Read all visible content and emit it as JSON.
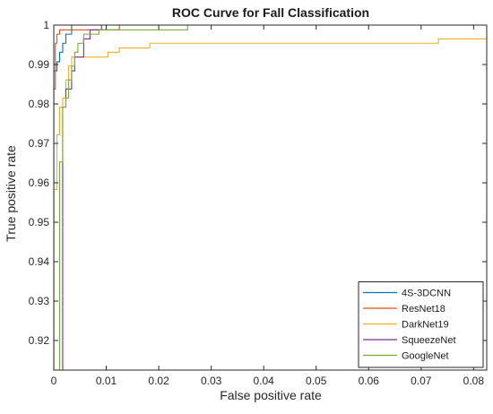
{
  "chart_data": {
    "type": "line",
    "title": "ROC Curve for Fall Classification",
    "xlabel": "False positive rate",
    "ylabel": "True positive rate",
    "xlim": [
      0,
      0.0825
    ],
    "ylim": [
      0.9125,
      1.0
    ],
    "xticks": [
      "0",
      "0.01",
      "0.02",
      "0.03",
      "0.04",
      "0.05",
      "0.06",
      "0.07",
      "0.08"
    ],
    "yticks": [
      "0.92",
      "0.93",
      "0.94",
      "0.95",
      "0.96",
      "0.97",
      "0.98",
      "0.99",
      "1"
    ],
    "grid": false,
    "legend_position": "bottom-right",
    "series": [
      {
        "name": "4S-3DCNN",
        "color": "#0072BD",
        "points": [
          [
            0,
            0.9125
          ],
          [
            0,
            0.9884
          ],
          [
            0.0006,
            0.9884
          ],
          [
            0.0006,
            0.9907
          ],
          [
            0.0011,
            0.9907
          ],
          [
            0.0011,
            0.9931
          ],
          [
            0.0017,
            0.9931
          ],
          [
            0.0017,
            0.9954
          ],
          [
            0.0023,
            0.9954
          ],
          [
            0.0023,
            0.9977
          ],
          [
            0.0034,
            0.9977
          ],
          [
            0.0034,
            1.0
          ],
          [
            0.0825,
            1.0
          ]
        ]
      },
      {
        "name": "ResNet18",
        "color": "#D95319",
        "points": [
          [
            0,
            0.9125
          ],
          [
            0,
            0.9838
          ],
          [
            0.0003,
            0.9838
          ],
          [
            0.0003,
            0.9954
          ],
          [
            0.0006,
            0.9954
          ],
          [
            0.0006,
            0.9977
          ],
          [
            0.0011,
            0.9977
          ],
          [
            0.0011,
            0.9988
          ],
          [
            0.0125,
            0.9988
          ],
          [
            0.0125,
            1.0
          ],
          [
            0.0825,
            1.0
          ]
        ]
      },
      {
        "name": "DarkNet19",
        "color": "#EDB120",
        "points": [
          [
            0,
            0.9125
          ],
          [
            0,
            0.9583
          ],
          [
            0.0006,
            0.9583
          ],
          [
            0.0006,
            0.9722
          ],
          [
            0.0011,
            0.9722
          ],
          [
            0.0011,
            0.9792
          ],
          [
            0.0017,
            0.9792
          ],
          [
            0.0017,
            0.9815
          ],
          [
            0.0023,
            0.9815
          ],
          [
            0.0023,
            0.9861
          ],
          [
            0.0028,
            0.9861
          ],
          [
            0.0028,
            0.9896
          ],
          [
            0.0034,
            0.9896
          ],
          [
            0.0034,
            0.9919
          ],
          [
            0.0103,
            0.9919
          ],
          [
            0.0103,
            0.9931
          ],
          [
            0.0125,
            0.9931
          ],
          [
            0.0125,
            0.9942
          ],
          [
            0.0183,
            0.9942
          ],
          [
            0.0183,
            0.9954
          ],
          [
            0.0733,
            0.9954
          ],
          [
            0.0733,
            0.9965
          ],
          [
            0.0825,
            0.9965
          ]
        ]
      },
      {
        "name": "SqueezeNet",
        "color": "#7E2F8E",
        "points": [
          [
            0,
            0.9125
          ],
          [
            0.0017,
            0.9125
          ],
          [
            0.0017,
            0.9792
          ],
          [
            0.0023,
            0.9792
          ],
          [
            0.0023,
            0.9838
          ],
          [
            0.0034,
            0.9838
          ],
          [
            0.0034,
            0.9884
          ],
          [
            0.004,
            0.9884
          ],
          [
            0.004,
            0.9919
          ],
          [
            0.0057,
            0.9919
          ],
          [
            0.0057,
            0.9965
          ],
          [
            0.0069,
            0.9965
          ],
          [
            0.0069,
            0.9988
          ],
          [
            0.0091,
            0.9988
          ],
          [
            0.0091,
            1.0
          ],
          [
            0.0825,
            1.0
          ]
        ]
      },
      {
        "name": "GoogleNet",
        "color": "#77AC30",
        "points": [
          [
            0,
            0.9125
          ],
          [
            0.0011,
            0.9125
          ],
          [
            0.0011,
            0.9653
          ],
          [
            0.0017,
            0.9653
          ],
          [
            0.0017,
            0.9792
          ],
          [
            0.0023,
            0.9792
          ],
          [
            0.0023,
            0.9815
          ],
          [
            0.0028,
            0.9815
          ],
          [
            0.0028,
            0.9861
          ],
          [
            0.0034,
            0.9861
          ],
          [
            0.0034,
            0.9896
          ],
          [
            0.004,
            0.9896
          ],
          [
            0.004,
            0.9931
          ],
          [
            0.0046,
            0.9931
          ],
          [
            0.0046,
            0.9954
          ],
          [
            0.0057,
            0.9954
          ],
          [
            0.0057,
            0.9977
          ],
          [
            0.0086,
            0.9977
          ],
          [
            0.0086,
            0.9988
          ],
          [
            0.0255,
            0.9988
          ],
          [
            0.0255,
            1.0
          ],
          [
            0.0825,
            1.0
          ]
        ]
      }
    ]
  }
}
